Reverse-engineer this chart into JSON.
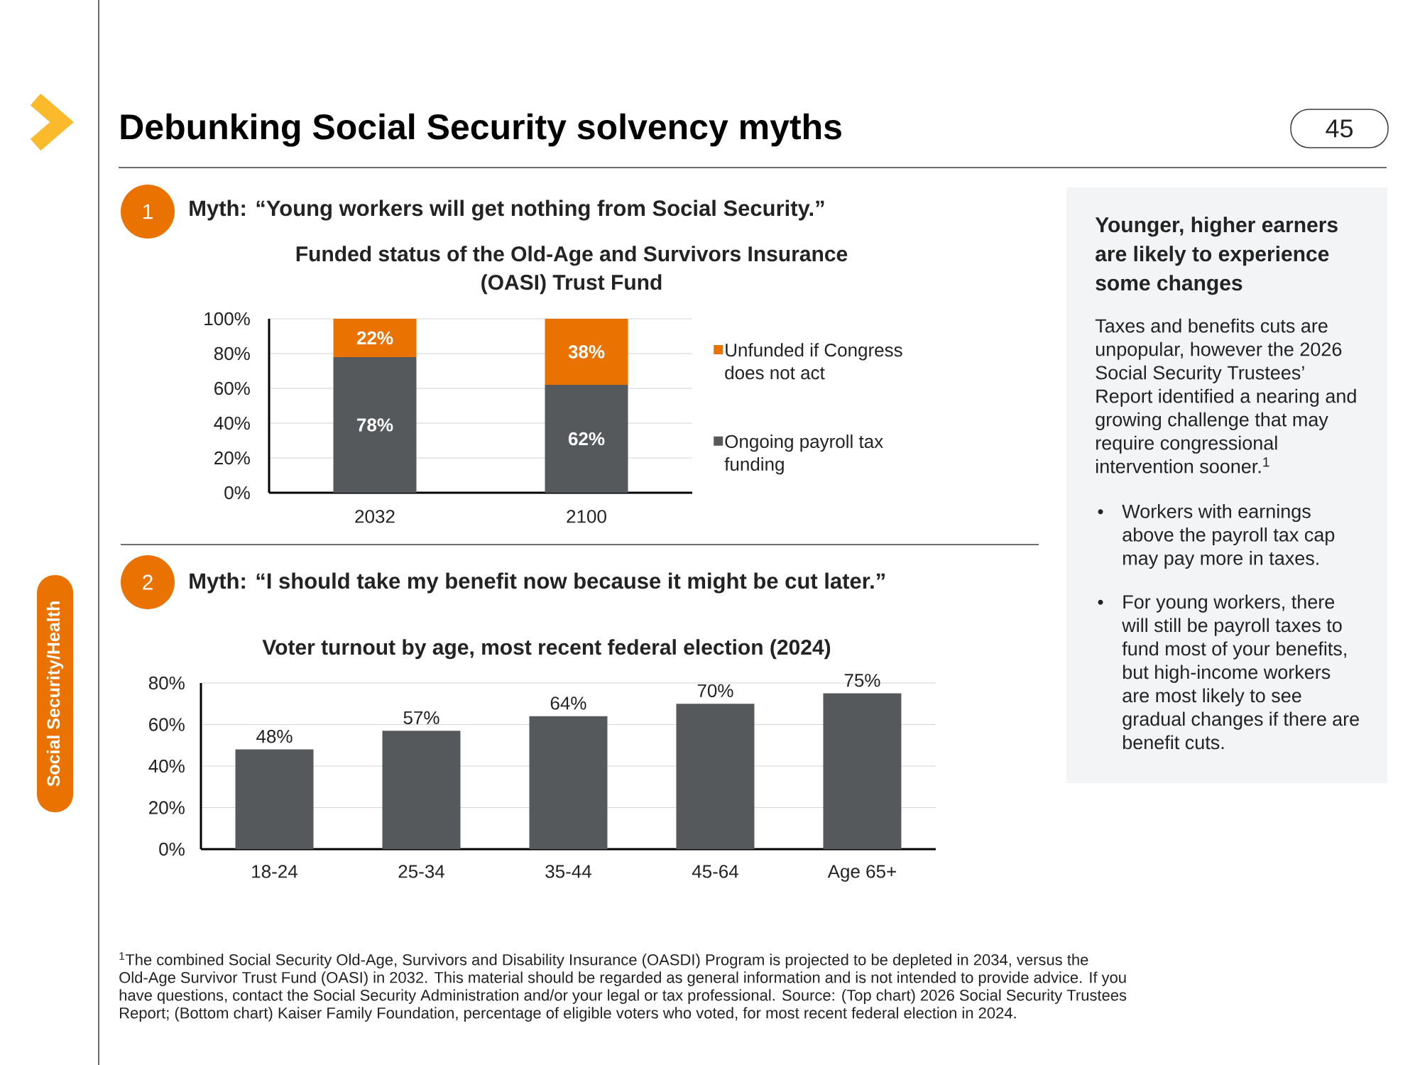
{
  "chart_data": [
    {
      "type": "other",
      "title": "Debunking Social Security solvency myths",
      "annotations": [
        "Social Security/Health",
        "45"
      ]
    },
    {
      "type": "bar",
      "title": "Funded status of the Old-Age and Survivors Insurance (OASI) Trust Fund",
      "annotations": [
        "1",
        "Myth: “Young workers will get nothing from Social Security.”"
      ],
      "categories": [
        "2032",
        "2100"
      ],
      "stacked": true,
      "series": [
        {
          "name": "Ongoing payroll tax funding",
          "color": "#56595c",
          "values": [
            78,
            62
          ],
          "value_labels": [
            "78%",
            "62%"
          ]
        },
        {
          "name": "Unfunded if Congress does not act",
          "color": "#ea7200",
          "values": [
            22,
            38
          ],
          "value_labels": [
            "22%",
            "38%"
          ]
        }
      ],
      "ylim": [
        0,
        100
      ],
      "yticks": [
        {
          "value": 0,
          "label": "0%"
        },
        {
          "value": 20,
          "label": "20%"
        },
        {
          "value": 40,
          "label": "40%"
        },
        {
          "value": 60,
          "label": "60%"
        },
        {
          "value": 80,
          "label": "80%"
        },
        {
          "value": 100,
          "label": "100%"
        }
      ],
      "grid": "y",
      "legend": "right"
    },
    {
      "type": "bar",
      "title": "Voter turnout by age, most recent federal election (2024)",
      "annotations": [
        "2",
        "Myth: “I should take my benefit now because it might be cut later.”",
        "$^{1}$The combined Social Security Old-Age, Survivors and Disability Insurance (OASDI) Program is projected to be depleted in 2034, versus the Old-Age Survivor Trust Fund (OASI) in 2032. This material should be regarded as general information and is not intended to provide advice. If you have questions, contact the Social Security Administration and/or your legal or tax professional. Source: (Top chart) 2026 Social Security Trustees Report; (Bottom chart) Kaiser Family Foundation, percentage of eligible voters who voted, for most recent federal election in 2024."
      ],
      "categories": [
        "18-24",
        "25-34",
        "35-44",
        "45-64",
        "Age 65+"
      ],
      "values": [
        48,
        57,
        64,
        70,
        75
      ],
      "value_labels": [
        "48%",
        "57%",
        "64%",
        "70%",
        "75%"
      ],
      "color": "#56595c",
      "ylim": [
        0,
        80
      ],
      "yticks": [
        {
          "value": 0,
          "label": "0%"
        },
        {
          "value": 20,
          "label": "20%"
        },
        {
          "value": 40,
          "label": "40%"
        },
        {
          "value": 60,
          "label": "60%"
        },
        {
          "value": 80,
          "label": "80%"
        }
      ],
      "grid": "y"
    },
    {
      "type": "other",
      "title": "Younger, higher earners are likely to experience some changes",
      "annotations": [
        "Taxes and benefits cuts are unpopular, however the 2026 Social Security Trustees’ Report identified a nearing and growing challenge that may require congressional intervention sooner.$^{1}$",
        "Workers with earnings above the payroll tax cap may pay more in taxes.",
        "For young workers, there will still be payroll taxes to fund most of your benefits, but high-income workers are most likely to see gradual changes if there are benefit cuts."
      ]
    }
  ]
}
